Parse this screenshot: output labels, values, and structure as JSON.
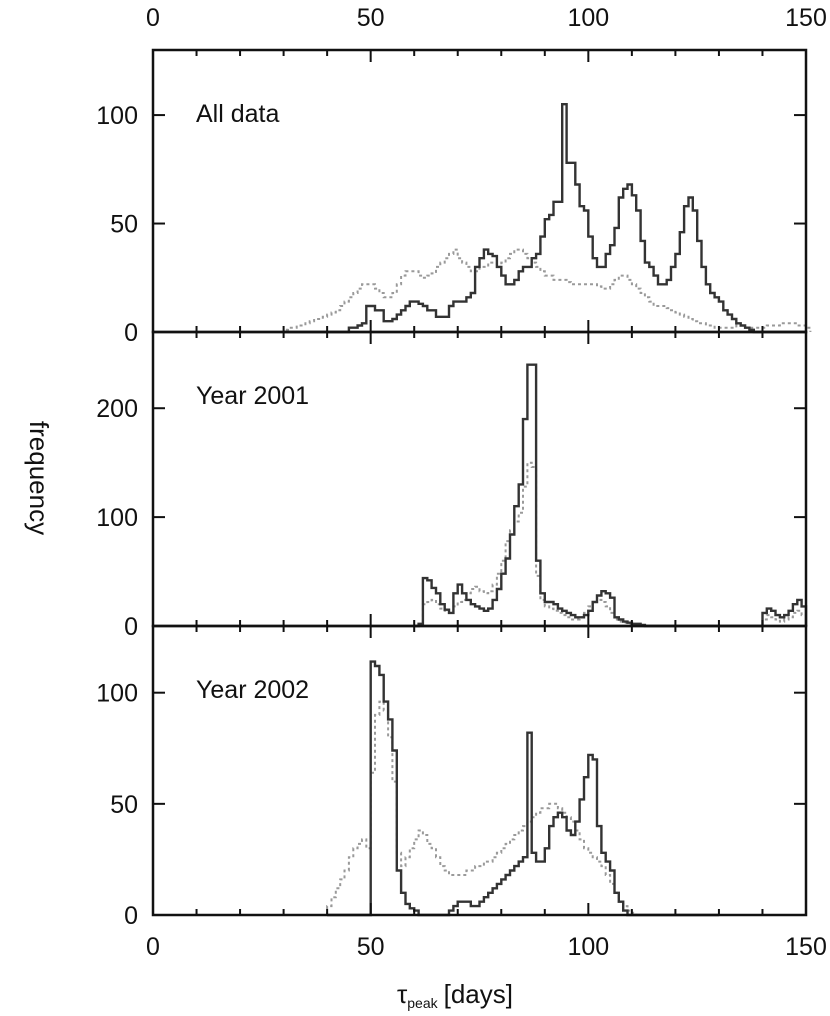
{
  "chart_data": {
    "type": "histogram",
    "xlabel_symbol": "τ",
    "xlabel_subscript": "peak",
    "xlabel_unit": "[days]",
    "ylabel": "frequency",
    "xlim": [
      0,
      150
    ],
    "xticks": [
      "0",
      "50",
      "100",
      "150"
    ],
    "top_xticks": [
      "0",
      "50",
      "100",
      "150"
    ],
    "bin_width": 1,
    "line_styles": {
      "solid": "#333333",
      "dotted": "#9a9a9a"
    },
    "panels": [
      {
        "label": "All data",
        "ylim": [
          0,
          130
        ],
        "yticks": [
          0,
          50,
          100
        ],
        "series": [
          {
            "style": "solid",
            "x0": 30,
            "values": [
              0,
              0,
              0,
              0,
              0,
              0,
              0,
              0,
              0,
              0,
              0,
              0,
              0,
              0,
              0,
              2,
              2,
              3,
              4,
              12,
              12,
              10,
              10,
              5,
              5,
              6,
              8,
              10,
              12,
              14,
              14,
              13,
              12,
              10,
              10,
              7,
              7,
              7,
              12,
              14,
              14,
              14,
              16,
              18,
              30,
              34,
              38,
              36,
              35,
              30,
              26,
              22,
              22,
              24,
              28,
              30,
              30,
              34,
              36,
              44,
              52,
              54,
              60,
              60,
              105,
              78,
              78,
              68,
              58,
              56,
              44,
              34,
              30,
              30,
              36,
              40,
              48,
              62,
              66,
              68,
              63,
              56,
              42,
              32,
              30,
              26,
              22,
              22,
              24,
              30,
              36,
              46,
              58,
              62,
              56,
              42,
              30,
              22,
              18,
              16,
              14,
              10,
              8,
              6,
              4,
              3,
              2,
              1,
              0,
              0,
              0,
              0,
              0,
              0,
              0,
              0,
              0,
              0,
              0,
              0
            ]
          },
          {
            "style": "dotted",
            "x0": 20,
            "values": [
              0,
              0,
              0,
              0,
              0,
              0,
              0,
              0,
              0,
              0,
              1,
              2,
              2,
              3,
              3,
              4,
              5,
              6,
              6,
              7,
              8,
              9,
              10,
              12,
              14,
              16,
              18,
              20,
              22,
              22,
              22,
              20,
              18,
              16,
              16,
              18,
              22,
              26,
              28,
              28,
              28,
              26,
              25,
              26,
              27,
              30,
              32,
              34,
              36,
              38,
              34,
              32,
              30,
              28,
              28,
              30,
              30,
              32,
              32,
              30,
              32,
              34,
              36,
              38,
              38,
              36,
              34,
              32,
              30,
              28,
              26,
              26,
              24,
              24,
              24,
              23,
              22,
              22,
              22,
              22,
              22,
              22,
              21,
              20,
              20,
              22,
              24,
              26,
              26,
              24,
              22,
              20,
              18,
              16,
              14,
              12,
              12,
              12,
              11,
              10,
              9,
              8,
              7,
              6,
              5,
              4,
              4,
              3,
              3,
              2,
              2,
              2,
              2,
              2,
              3,
              3,
              2,
              2,
              2,
              2,
              2,
              3,
              3,
              3,
              4,
              4,
              4,
              4,
              3,
              3,
              2
            ]
          }
        ]
      },
      {
        "label": "Year 2001",
        "ylim": [
          0,
          270
        ],
        "yticks": [
          0,
          100,
          200
        ],
        "series": [
          {
            "style": "solid",
            "x0": 60,
            "values": [
              0,
              2,
              44,
              42,
              35,
              30,
              20,
              15,
              12,
              30,
              38,
              30,
              24,
              20,
              18,
              16,
              14,
              16,
              24,
              34,
              48,
              62,
              84,
              110,
              130,
              190,
              240,
              240,
              60,
              30,
              22,
              22,
              20,
              16,
              14,
              12,
              10,
              8,
              8,
              10,
              14,
              22,
              28,
              32,
              30,
              26,
              8,
              6,
              4,
              3,
              2,
              2,
              1,
              0,
              0,
              0,
              0,
              0,
              0,
              0,
              0,
              0,
              0,
              0,
              0,
              0,
              0,
              0,
              0,
              0,
              0,
              0,
              0,
              0,
              0,
              0,
              0,
              0,
              0,
              0,
              12,
              16,
              14,
              10,
              8,
              10,
              14,
              20,
              24,
              18
            ]
          },
          {
            "style": "dotted",
            "x0": 60,
            "values": [
              0,
              0,
              20,
              22,
              24,
              20,
              16,
              14,
              12,
              18,
              22,
              24,
              30,
              34,
              36,
              32,
              30,
              32,
              38,
              48,
              60,
              78,
              88,
              96,
              104,
              128,
              150,
              146,
              46,
              24,
              18,
              16,
              14,
              12,
              10,
              8,
              6,
              6,
              8,
              12,
              18,
              22,
              24,
              22,
              18,
              12,
              6,
              4,
              3,
              2,
              1,
              1,
              0,
              0,
              0,
              0,
              0,
              0,
              0,
              0,
              0,
              0,
              0,
              0,
              0,
              0,
              0,
              0,
              0,
              0,
              0,
              0,
              0,
              0,
              0,
              0,
              0,
              0,
              0,
              0,
              6,
              10,
              8,
              6,
              4,
              6,
              8,
              12,
              14,
              10
            ]
          }
        ]
      },
      {
        "label": "Year 2002",
        "ylim": [
          0,
          130
        ],
        "yticks": [
          0,
          50,
          100
        ],
        "series": [
          {
            "style": "solid",
            "x0": 40,
            "values": [
              0,
              0,
              0,
              0,
              0,
              0,
              0,
              0,
              0,
              0,
              114,
              112,
              108,
              96,
              88,
              74,
              20,
              10,
              5,
              3,
              2,
              0,
              0,
              0,
              0,
              0,
              0,
              0,
              2,
              4,
              6,
              6,
              6,
              4,
              4,
              6,
              8,
              10,
              12,
              14,
              16,
              18,
              20,
              22,
              24,
              26,
              82,
              28,
              24,
              24,
              30,
              40,
              44,
              46,
              44,
              38,
              36,
              42,
              52,
              62,
              72,
              70,
              40,
              28,
              24,
              20,
              10,
              6,
              2,
              0,
              0,
              0,
              0,
              0,
              0,
              0,
              0,
              0,
              0,
              0,
              0,
              0,
              0,
              0,
              0,
              0,
              0,
              0,
              0,
              0
            ]
          },
          {
            "style": "dotted",
            "x0": 40,
            "values": [
              4,
              8,
              12,
              16,
              20,
              26,
              30,
              32,
              34,
              30,
              64,
              90,
              96,
              92,
              80,
              60,
              28,
              22,
              26,
              30,
              34,
              38,
              36,
              32,
              30,
              26,
              22,
              20,
              18,
              18,
              18,
              18,
              20,
              20,
              22,
              22,
              24,
              24,
              26,
              28,
              30,
              32,
              34,
              36,
              38,
              40,
              42,
              44,
              46,
              48,
              48,
              50,
              50,
              48,
              46,
              44,
              42,
              38,
              34,
              30,
              28,
              26,
              24,
              22,
              18,
              14,
              10,
              6,
              4,
              2,
              1,
              0,
              0,
              0,
              0,
              0,
              0,
              0,
              0,
              0,
              0,
              0,
              0,
              0,
              0,
              0,
              0,
              0,
              0,
              0
            ]
          }
        ]
      }
    ]
  }
}
